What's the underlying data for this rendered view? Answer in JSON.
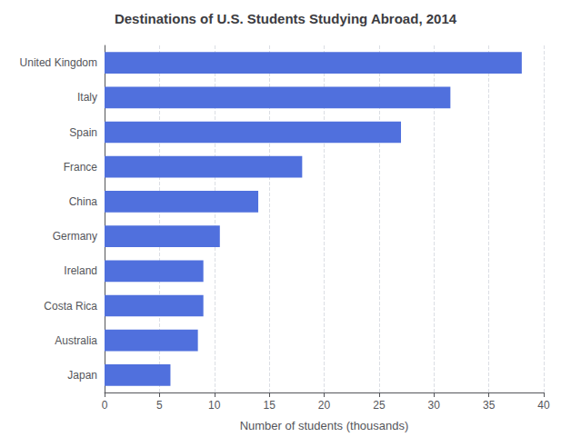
{
  "chart_data": {
    "type": "bar",
    "orientation": "horizontal",
    "title": "Destinations of U.S. Students Studying Abroad, 2014",
    "categories": [
      "United Kingdom",
      "Italy",
      "Spain",
      "France",
      "China",
      "Germany",
      "Ireland",
      "Costa Rica",
      "Australia",
      "Japan"
    ],
    "values": [
      38.0,
      31.5,
      27.0,
      18.0,
      14.0,
      10.5,
      9.0,
      9.0,
      8.5,
      6.0
    ],
    "xlabel": "Number of students (thousands)",
    "xlim": [
      0,
      40
    ],
    "xticks": [
      0,
      5,
      10,
      15,
      20,
      25,
      30,
      35,
      40
    ],
    "grid": true
  }
}
